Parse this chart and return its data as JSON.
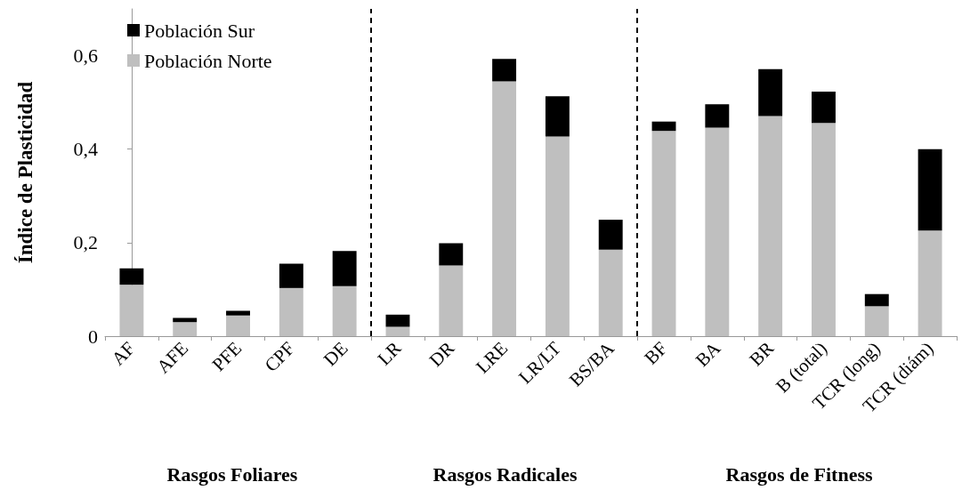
{
  "chart_data": {
    "type": "bar",
    "stacked": true,
    "ylabel": "Índice de Plasticidad",
    "categories": [
      "AF",
      "AFE",
      "PFE",
      "CPF",
      "DE",
      "LR",
      "DR",
      "LRE",
      "LR/LT",
      "BS/BA",
      "BF",
      "BA",
      "BR",
      "B (total)",
      "TCR (long)",
      "TCR (diám)"
    ],
    "series": [
      {
        "name": "Población Norte",
        "color": "#bfbfbf",
        "values": [
          0.11,
          0.03,
          0.044,
          0.103,
          0.107,
          0.02,
          0.151,
          0.545,
          0.427,
          0.185,
          0.439,
          0.446,
          0.471,
          0.456,
          0.064,
          0.226
        ]
      },
      {
        "name": "Población Sur",
        "color": "#000000",
        "values": [
          0.035,
          0.009,
          0.01,
          0.052,
          0.075,
          0.026,
          0.048,
          0.048,
          0.086,
          0.064,
          0.02,
          0.05,
          0.1,
          0.067,
          0.026,
          0.174
        ]
      }
    ],
    "ylim": [
      0,
      0.7
    ],
    "yticks": [
      0,
      {
        "value": 0.2,
        "label": "0,2"
      },
      {
        "value": 0.4,
        "label": "0,4"
      },
      {
        "value": 0.6,
        "label": "0,6"
      }
    ],
    "annotations": [
      "Rasgos Foliares",
      "Rasgos Radicales",
      "Rasgos de Fitness"
    ],
    "legend": "top left",
    "grid": false
  }
}
